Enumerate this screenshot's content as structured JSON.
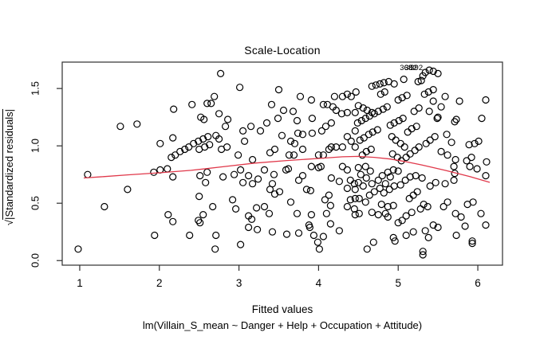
{
  "chart_data": {
    "type": "scatter",
    "title": "Scale-Location",
    "xlabel": "Fitted values",
    "model_caption": "lm(Villain_S_mean ~ Danger + Help + Occupation + Attitude)",
    "ylabel": "√|Standardized residuals|",
    "ylabel_parts": {
      "radical": "√",
      "overlined": "|Standardized residuals|"
    },
    "xlim": [
      0.78,
      6.31
    ],
    "ylim": [
      -0.04,
      1.73
    ],
    "xticks": [
      1,
      2,
      3,
      4,
      5,
      6
    ],
    "ytick_values": [
      0,
      0.5,
      1.0,
      1.5
    ],
    "ytick_labels": [
      "0.0",
      "0.5",
      "1.0",
      "1.5"
    ],
    "grid": false,
    "legend": "none",
    "marker": "open-circle",
    "colors": {
      "points": "#000000",
      "smooth_line": "#e0384a",
      "frame": "#2e2e2e"
    },
    "labeled_points": [
      {
        "label": "368",
        "x": 5.1,
        "y": 1.68
      },
      {
        "label": "382",
        "x": 5.16,
        "y": 1.68
      },
      {
        "label": "392",
        "x": 5.23,
        "y": 1.68
      }
    ],
    "smooth_line": [
      [
        1.05,
        0.72
      ],
      [
        1.3,
        0.732
      ],
      [
        1.6,
        0.747
      ],
      [
        2.0,
        0.765
      ],
      [
        2.4,
        0.787
      ],
      [
        2.8,
        0.818
      ],
      [
        3.2,
        0.85
      ],
      [
        3.6,
        0.872
      ],
      [
        4.0,
        0.89
      ],
      [
        4.3,
        0.905
      ],
      [
        4.5,
        0.908
      ],
      [
        4.7,
        0.9
      ],
      [
        4.9,
        0.885
      ],
      [
        5.1,
        0.862
      ],
      [
        5.3,
        0.833
      ],
      [
        5.6,
        0.785
      ],
      [
        5.9,
        0.732
      ],
      [
        6.15,
        0.682
      ]
    ],
    "points": [
      [
        0.98,
        0.1
      ],
      [
        1.1,
        0.75
      ],
      [
        1.31,
        0.47
      ],
      [
        1.51,
        1.17
      ],
      [
        1.6,
        0.62
      ],
      [
        1.72,
        1.19
      ],
      [
        1.93,
        0.77
      ],
      [
        1.94,
        0.22
      ],
      [
        2.01,
        0.79
      ],
      [
        2.1,
        0.8
      ],
      [
        2.17,
        0.73
      ],
      [
        2.11,
        0.4
      ],
      [
        2.17,
        0.34
      ],
      [
        2.38,
        0.22
      ],
      [
        2.49,
        0.35
      ],
      [
        2.51,
        0.33
      ],
      [
        2.55,
        0.4
      ],
      [
        2.5,
        0.56
      ],
      [
        2.51,
        0.74
      ],
      [
        2.58,
        0.68
      ],
      [
        2.6,
        0.77
      ],
      [
        2.67,
        0.47
      ],
      [
        2.7,
        0.1
      ],
      [
        2.71,
        0.22
      ],
      [
        2.01,
        1.02
      ],
      [
        2.15,
        0.9
      ],
      [
        2.17,
        1.07
      ],
      [
        2.18,
        1.32
      ],
      [
        2.2,
        0.92
      ],
      [
        2.26,
        0.95
      ],
      [
        2.32,
        0.97
      ],
      [
        2.37,
        0.99
      ],
      [
        2.41,
        1.36
      ],
      [
        2.43,
        1.02
      ],
      [
        2.49,
        1.04
      ],
      [
        2.5,
        0.97
      ],
      [
        2.52,
        1.25
      ],
      [
        2.55,
        1.06
      ],
      [
        2.56,
        1.23
      ],
      [
        2.57,
        0.99
      ],
      [
        2.6,
        1.37
      ],
      [
        2.61,
        1.08
      ],
      [
        2.63,
        1.01
      ],
      [
        2.77,
        1.63
      ],
      [
        3.01,
        1.51
      ],
      [
        3.5,
        1.49
      ],
      [
        2.69,
        1.43
      ],
      [
        2.65,
        1.37
      ],
      [
        3.77,
        1.43
      ],
      [
        3.91,
        1.4
      ],
      [
        4.3,
        1.43
      ],
      [
        4.18,
        1.34
      ],
      [
        2.75,
        1.28
      ],
      [
        3.41,
        1.36
      ],
      [
        3.56,
        1.31
      ],
      [
        3.68,
        1.3
      ],
      [
        3.35,
        1.2
      ],
      [
        3.49,
        1.24
      ],
      [
        3.73,
        1.22
      ],
      [
        3.92,
        1.24
      ],
      [
        2.86,
        1.23
      ],
      [
        2.83,
        1.17
      ],
      [
        3.05,
        1.13
      ],
      [
        3.15,
        1.17
      ],
      [
        3.27,
        1.13
      ],
      [
        3.07,
        1.04
      ],
      [
        2.71,
        1.09
      ],
      [
        2.75,
        1.06
      ],
      [
        2.85,
        0.99
      ],
      [
        2.78,
        0.97
      ],
      [
        2.99,
        0.92
      ],
      [
        3.17,
        0.88
      ],
      [
        3.39,
        0.94
      ],
      [
        3.45,
        0.97
      ],
      [
        3.54,
        1.09
      ],
      [
        3.65,
        1.04
      ],
      [
        3.7,
        1.02
      ],
      [
        3.74,
        1.11
      ],
      [
        3.8,
        1.1
      ],
      [
        3.92,
        1.11
      ],
      [
        4.04,
        1.13
      ],
      [
        4.09,
        1.17
      ],
      [
        4.16,
        1.2
      ],
      [
        4.22,
        1.31
      ],
      [
        4.29,
        1.28
      ],
      [
        4.36,
        1.29
      ],
      [
        4.06,
        1.36
      ],
      [
        4.11,
        1.36
      ],
      [
        4.2,
        1.43
      ],
      [
        4.36,
        1.45
      ],
      [
        4.41,
        1.43
      ],
      [
        4.46,
        1.29
      ],
      [
        4.46,
        1.13
      ],
      [
        4.36,
        1.08
      ],
      [
        4.41,
        1.04
      ],
      [
        4.46,
        0.99
      ],
      [
        4.3,
        0.99
      ],
      [
        4.22,
        0.99
      ],
      [
        4.16,
        0.99
      ],
      [
        4.06,
        0.92
      ],
      [
        4.0,
        0.92
      ],
      [
        4.13,
        0.97
      ],
      [
        3.63,
        0.92
      ],
      [
        3.69,
        0.92
      ],
      [
        3.8,
        0.97
      ],
      [
        4.47,
        1.47
      ],
      [
        4.67,
        1.52
      ],
      [
        4.72,
        1.53
      ],
      [
        4.77,
        1.54
      ],
      [
        4.82,
        1.55
      ],
      [
        4.88,
        1.56
      ],
      [
        4.95,
        1.54
      ],
      [
        5.07,
        1.58
      ],
      [
        5.25,
        1.56
      ],
      [
        5.29,
        1.57
      ],
      [
        5.31,
        1.61
      ],
      [
        5.34,
        1.64
      ],
      [
        5.39,
        1.66
      ],
      [
        5.44,
        1.65
      ],
      [
        5.5,
        1.63
      ],
      [
        5.39,
        1.3
      ],
      [
        5.44,
        1.39
      ],
      [
        5.49,
        1.24
      ],
      [
        5.54,
        1.34
      ],
      [
        5.59,
        1.43
      ],
      [
        5.73,
        1.23
      ],
      [
        5.77,
        1.39
      ],
      [
        6.05,
        1.24
      ],
      [
        6.1,
        1.4
      ],
      [
        4.49,
        1.2
      ],
      [
        4.54,
        1.22
      ],
      [
        4.59,
        1.24
      ],
      [
        4.64,
        1.26
      ],
      [
        4.7,
        1.28
      ],
      [
        4.75,
        1.3
      ],
      [
        4.81,
        1.32
      ],
      [
        4.86,
        1.34
      ],
      [
        4.5,
        1.35
      ],
      [
        4.56,
        1.33
      ],
      [
        4.61,
        1.31
      ],
      [
        4.67,
        1.29
      ],
      [
        4.52,
        1.05
      ],
      [
        4.57,
        1.07
      ],
      [
        4.63,
        1.1
      ],
      [
        4.68,
        1.12
      ],
      [
        4.74,
        1.14
      ],
      [
        4.9,
        1.18
      ],
      [
        4.95,
        1.2
      ],
      [
        5.01,
        1.22
      ],
      [
        5.06,
        1.24
      ],
      [
        4.92,
        1.08
      ],
      [
        4.97,
        1.05
      ],
      [
        5.03,
        1.02
      ],
      [
        5.08,
        0.99
      ],
      [
        5.12,
        1.12
      ],
      [
        5.17,
        1.15
      ],
      [
        5.23,
        1.17
      ],
      [
        4.55,
        0.92
      ],
      [
        4.6,
        0.95
      ],
      [
        4.66,
        0.97
      ],
      [
        5.35,
        1.02
      ],
      [
        5.4,
        1.05
      ],
      [
        5.46,
        1.08
      ],
      [
        4.78,
        1.45
      ],
      [
        4.83,
        1.47
      ],
      [
        5.0,
        1.4
      ],
      [
        5.05,
        1.42
      ],
      [
        5.11,
        1.44
      ],
      [
        5.2,
        1.3
      ],
      [
        5.26,
        1.33
      ],
      [
        5.33,
        1.45
      ],
      [
        5.38,
        1.47
      ],
      [
        5.44,
        1.49
      ],
      [
        4.93,
        0.93
      ],
      [
        4.99,
        0.9
      ],
      [
        5.04,
        0.87
      ],
      [
        5.1,
        0.9
      ],
      [
        5.15,
        0.93
      ],
      [
        5.21,
        0.96
      ],
      [
        5.26,
        0.99
      ],
      [
        5.5,
        1.25
      ],
      [
        5.71,
        1.21
      ],
      [
        5.61,
        1.1
      ],
      [
        5.67,
        1.03
      ],
      [
        5.54,
        0.95
      ],
      [
        5.62,
        0.92
      ],
      [
        5.72,
        0.88
      ],
      [
        5.89,
        1.01
      ],
      [
        5.96,
        1.02
      ],
      [
        6.01,
        1.04
      ],
      [
        5.86,
        0.87
      ],
      [
        5.92,
        0.9
      ],
      [
        6.11,
        0.86
      ],
      [
        3.02,
        0.79
      ],
      [
        2.94,
        0.75
      ],
      [
        2.8,
        0.73
      ],
      [
        3.12,
        0.74
      ],
      [
        3.24,
        0.71
      ],
      [
        3.32,
        0.79
      ],
      [
        3.44,
        0.75
      ],
      [
        3.59,
        0.79
      ],
      [
        3.62,
        0.8
      ],
      [
        3.75,
        0.7
      ],
      [
        3.8,
        0.74
      ],
      [
        3.91,
        0.82
      ],
      [
        4.0,
        0.81
      ],
      [
        4.03,
        0.82
      ],
      [
        4.3,
        0.82
      ],
      [
        4.36,
        0.79
      ],
      [
        4.16,
        0.72
      ],
      [
        4.26,
        0.69
      ],
      [
        4.4,
        0.7
      ],
      [
        4.45,
        0.67
      ],
      [
        3.05,
        0.68
      ],
      [
        3.17,
        0.67
      ],
      [
        3.42,
        0.67
      ],
      [
        3.51,
        0.6
      ],
      [
        3.65,
        0.51
      ],
      [
        3.39,
        0.62
      ],
      [
        3.45,
        0.58
      ],
      [
        2.92,
        0.53
      ],
      [
        2.96,
        0.45
      ],
      [
        3.22,
        0.46
      ],
      [
        3.32,
        0.47
      ],
      [
        3.38,
        0.41
      ],
      [
        3.12,
        0.39
      ],
      [
        3.16,
        0.36
      ],
      [
        3.12,
        0.29
      ],
      [
        3.73,
        0.41
      ],
      [
        3.91,
        0.4
      ],
      [
        4.1,
        0.41
      ],
      [
        3.88,
        0.31
      ],
      [
        3.89,
        0.29
      ],
      [
        4.15,
        0.32
      ],
      [
        4.26,
        0.26
      ],
      [
        3.02,
        0.14
      ],
      [
        3.23,
        0.27
      ],
      [
        3.42,
        0.25
      ],
      [
        3.6,
        0.23
      ],
      [
        3.75,
        0.24
      ],
      [
        3.94,
        0.22
      ],
      [
        3.99,
        0.16
      ],
      [
        4.01,
        0.1
      ],
      [
        4.06,
        0.21
      ],
      [
        4.36,
        0.63
      ],
      [
        4.46,
        0.62
      ],
      [
        4.4,
        0.53
      ],
      [
        4.46,
        0.54
      ],
      [
        4.08,
        0.53
      ],
      [
        4.13,
        0.57
      ],
      [
        3.9,
        0.61
      ],
      [
        3.85,
        0.62
      ],
      [
        4.15,
        0.48
      ],
      [
        4.36,
        0.47
      ],
      [
        4.45,
        0.45
      ],
      [
        4.46,
        0.4
      ],
      [
        4.5,
        0.81
      ],
      [
        4.59,
        0.82
      ],
      [
        4.65,
        0.78
      ],
      [
        4.53,
        0.75
      ],
      [
        4.6,
        0.72
      ],
      [
        4.5,
        0.68
      ],
      [
        4.56,
        0.65
      ],
      [
        4.67,
        0.67
      ],
      [
        4.75,
        0.7
      ],
      [
        4.8,
        0.74
      ],
      [
        4.87,
        0.77
      ],
      [
        4.94,
        0.79
      ],
      [
        5.0,
        0.78
      ],
      [
        4.9,
        0.73
      ],
      [
        4.84,
        0.67
      ],
      [
        4.77,
        0.63
      ],
      [
        4.7,
        0.6
      ],
      [
        4.64,
        0.57
      ],
      [
        4.82,
        0.59
      ],
      [
        4.89,
        0.62
      ],
      [
        4.95,
        0.65
      ],
      [
        5.03,
        0.66
      ],
      [
        5.09,
        0.7
      ],
      [
        5.15,
        0.73
      ],
      [
        5.22,
        0.74
      ],
      [
        5.3,
        0.72
      ],
      [
        5.4,
        0.65
      ],
      [
        5.47,
        0.68
      ],
      [
        5.59,
        0.67
      ],
      [
        5.7,
        0.7
      ],
      [
        5.71,
        0.76
      ],
      [
        5.7,
        0.82
      ],
      [
        5.9,
        0.82
      ],
      [
        5.99,
        0.8
      ],
      [
        6.1,
        0.74
      ],
      [
        4.79,
        0.49
      ],
      [
        4.87,
        0.47
      ],
      [
        4.94,
        0.48
      ],
      [
        4.84,
        0.41
      ],
      [
        4.87,
        0.38
      ],
      [
        4.75,
        0.4
      ],
      [
        4.67,
        0.42
      ],
      [
        4.59,
        0.51
      ],
      [
        4.51,
        0.54
      ],
      [
        4.51,
        0.41
      ],
      [
        5.14,
        0.54
      ],
      [
        5.19,
        0.57
      ],
      [
        5.24,
        0.6
      ],
      [
        5.32,
        0.49
      ],
      [
        5.37,
        0.47
      ],
      [
        5.28,
        0.45
      ],
      [
        5.17,
        0.42
      ],
      [
        5.1,
        0.39
      ],
      [
        5.05,
        0.35
      ],
      [
        5.0,
        0.33
      ],
      [
        5.62,
        0.51
      ],
      [
        5.57,
        0.47
      ],
      [
        5.72,
        0.41
      ],
      [
        5.79,
        0.38
      ],
      [
        5.87,
        0.49
      ],
      [
        5.94,
        0.51
      ],
      [
        6.04,
        0.41
      ],
      [
        6.1,
        0.31
      ],
      [
        5.84,
        0.3
      ],
      [
        5.5,
        0.29
      ],
      [
        5.44,
        0.31
      ],
      [
        5.34,
        0.26
      ],
      [
        5.19,
        0.25
      ],
      [
        5.1,
        0.22
      ],
      [
        4.94,
        0.2
      ],
      [
        4.96,
        0.17
      ],
      [
        4.69,
        0.16
      ],
      [
        4.61,
        0.1
      ],
      [
        5.38,
        0.2
      ],
      [
        5.31,
        0.08
      ],
      [
        5.31,
        0.05
      ],
      [
        5.93,
        0.17
      ],
      [
        5.93,
        0.15
      ],
      [
        5.73,
        0.22
      ]
    ]
  }
}
